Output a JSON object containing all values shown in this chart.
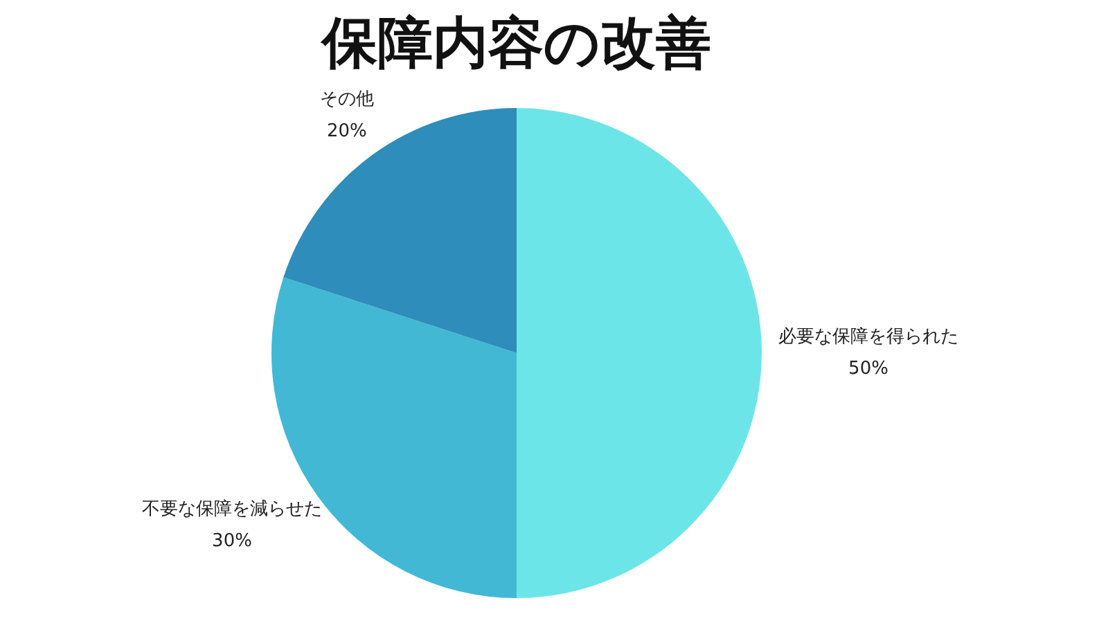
{
  "chart_data": {
    "type": "pie",
    "title": "保障内容の改善",
    "categories": [
      "必要な保障を得られた",
      "不要な保障を減らせた",
      "その他"
    ],
    "values": [
      50,
      30,
      20
    ],
    "value_labels": [
      "50%",
      "30%",
      "20%"
    ],
    "colors": [
      "#6ce5e8",
      "#42b8d5",
      "#2e8dba"
    ]
  }
}
